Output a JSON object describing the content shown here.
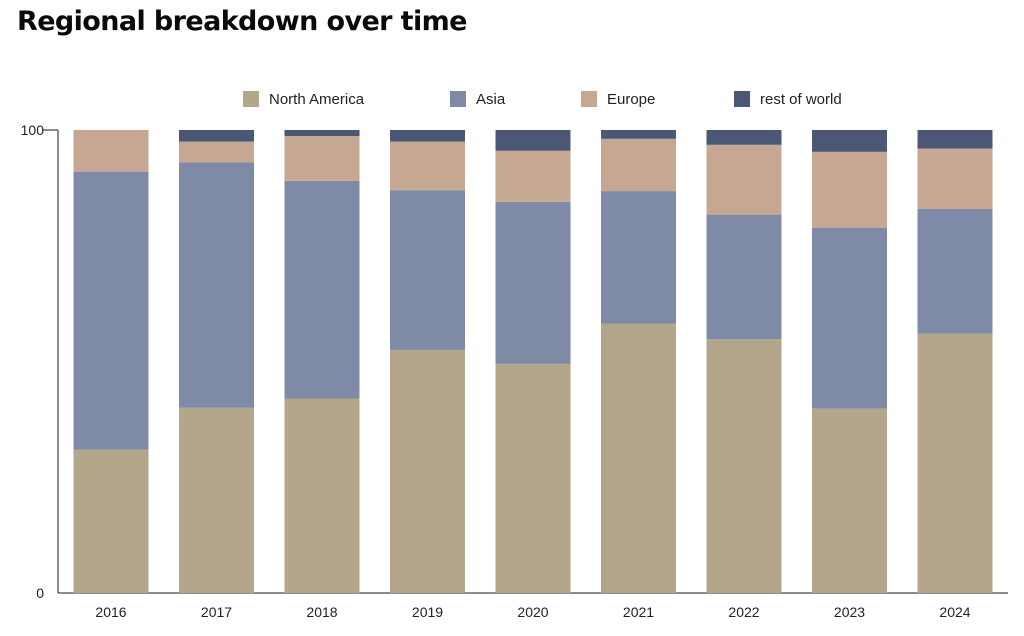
{
  "title": "Regional breakdown over time",
  "chart_data": {
    "type": "bar",
    "stacked": true,
    "categories": [
      "2016",
      "2017",
      "2018",
      "2019",
      "2020",
      "2021",
      "2022",
      "2023",
      "2024"
    ],
    "series": [
      {
        "name": "North America",
        "color": "#b4a68a",
        "values": [
          31,
          40,
          42,
          52.5,
          49.5,
          58.2,
          54.8,
          39.8,
          56
        ]
      },
      {
        "name": "Asia",
        "color": "#7f8ba6",
        "values": [
          60,
          53,
          47,
          34.5,
          35,
          28.6,
          27,
          39.1,
          27
        ]
      },
      {
        "name": "Europe",
        "color": "#c6a791",
        "values": [
          9,
          4.5,
          9.7,
          10.5,
          11,
          11.3,
          15,
          16.4,
          13
        ]
      },
      {
        "name": "rest of world",
        "color": "#4a5775",
        "values": [
          0,
          2.5,
          1.3,
          2.5,
          4.5,
          1.9,
          3.2,
          4.7,
          4
        ]
      }
    ],
    "y_ticks": [
      "0",
      "100"
    ],
    "ylim": [
      0,
      100
    ],
    "legend_position": "top",
    "grid": false
  }
}
